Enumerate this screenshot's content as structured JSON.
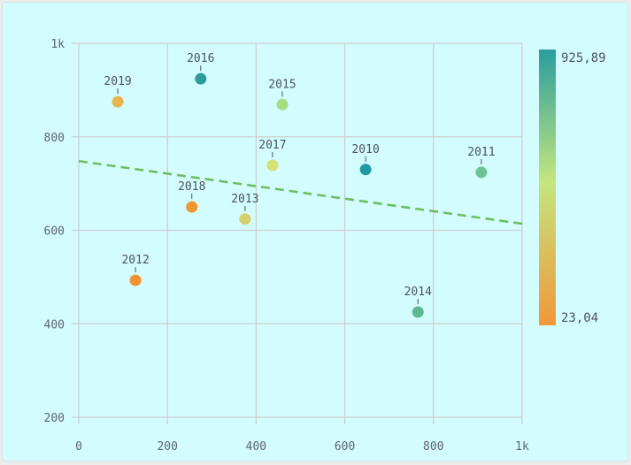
{
  "chart_data": {
    "type": "scatter",
    "title": "",
    "xlabel": "",
    "ylabel": "",
    "xlim": [
      0,
      1000
    ],
    "ylim": [
      200,
      1000
    ],
    "x_ticks": [
      "0",
      "200",
      "400",
      "600",
      "800",
      "1k"
    ],
    "y_ticks": [
      "200",
      "400",
      "600",
      "800",
      "1k"
    ],
    "grid": true,
    "legend": {
      "type": "colorbar",
      "position": "right",
      "max_label": "925,89",
      "min_label": "23,04",
      "max": 925.89,
      "min": 23.04,
      "color_max": "#2a9d9f",
      "color_mid": "#c4e67e",
      "color_min": "#f0983a"
    },
    "points": [
      {
        "label": "2010",
        "x": 647,
        "y": 730,
        "color": "#22999e"
      },
      {
        "label": "2011",
        "x": 908,
        "y": 724,
        "color": "#6dc391"
      },
      {
        "label": "2012",
        "x": 128,
        "y": 493,
        "color": "#f0922e"
      },
      {
        "label": "2013",
        "x": 375,
        "y": 624,
        "color": "#d5d06a"
      },
      {
        "label": "2014",
        "x": 765,
        "y": 425,
        "color": "#5db88f"
      },
      {
        "label": "2015",
        "x": 459,
        "y": 869,
        "color": "#a6dc82"
      },
      {
        "label": "2016",
        "x": 275,
        "y": 924,
        "color": "#2a9d9a"
      },
      {
        "label": "2017",
        "x": 437,
        "y": 739,
        "color": "#d3e274"
      },
      {
        "label": "2018",
        "x": 255,
        "y": 650,
        "color": "#f0962f"
      },
      {
        "label": "2019",
        "x": 88,
        "y": 875,
        "color": "#e8b44c"
      }
    ],
    "trendline": {
      "x": [
        0,
        1000
      ],
      "y": [
        748,
        614
      ],
      "color": "#6dbf5e",
      "style": "dashed"
    }
  }
}
